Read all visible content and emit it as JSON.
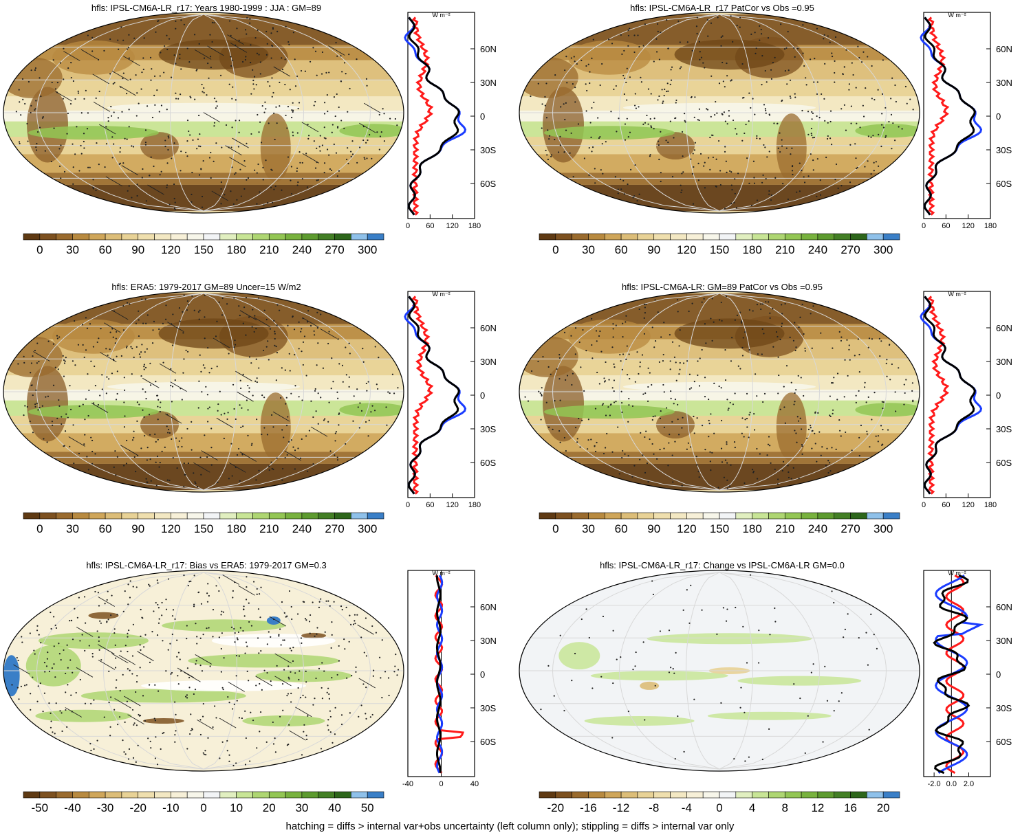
{
  "panels": [
    {
      "id": "p1",
      "title": "hfls: IPSL-CM6A-LR_r17: Years 1980-1999 : JJA : GM=89",
      "kind": "mean",
      "cbar": {
        "ticks": [
          "0",
          "30",
          "60",
          "90",
          "120",
          "150",
          "180",
          "210",
          "240",
          "270",
          "300"
        ],
        "colors": [
          "#5f3a13",
          "#7d5120",
          "#9a6b2e",
          "#b88a40",
          "#cfa65a",
          "#dcbd78",
          "#e8d296",
          "#efdfae",
          "#f3e8c3",
          "#f7f0d8",
          "#f7f6ea",
          "#f2f4f6",
          "#e1efc0",
          "#c8e596",
          "#aed672",
          "#93c654",
          "#78b23e",
          "#5d9b2f",
          "#437f25",
          "#2d661b",
          "#8fc1ea",
          "#3a7fc7"
        ]
      },
      "profile": {
        "xticks": [
          "0",
          "60",
          "120",
          "180"
        ],
        "xlim": [
          0,
          180
        ]
      }
    },
    {
      "id": "p2",
      "title": "hfls: IPSL-CM6A-LR_r17 PatCor vs Obs =0.95",
      "kind": "mean",
      "cbar": {
        "ticks": [
          "0",
          "30",
          "60",
          "90",
          "120",
          "150",
          "180",
          "210",
          "240",
          "270",
          "300"
        ]
      },
      "profile": {
        "xticks": [
          "0",
          "60",
          "120",
          "180"
        ],
        "xlim": [
          0,
          180
        ]
      }
    },
    {
      "id": "p3",
      "title": "hfls: ERA5: 1979-2017 GM=89 Uncer=15 W/m2",
      "kind": "mean",
      "cbar": {
        "ticks": [
          "0",
          "30",
          "60",
          "90",
          "120",
          "150",
          "180",
          "210",
          "240",
          "270",
          "300"
        ]
      },
      "profile": {
        "xticks": [
          "0",
          "60",
          "120",
          "180"
        ],
        "xlim": [
          0,
          180
        ]
      }
    },
    {
      "id": "p4",
      "title": "hfls: IPSL-CM6A-LR: GM=89 PatCor vs Obs =0.95",
      "kind": "mean",
      "cbar": {
        "ticks": [
          "0",
          "30",
          "60",
          "90",
          "120",
          "150",
          "180",
          "210",
          "240",
          "270",
          "300"
        ]
      },
      "profile": {
        "xticks": [
          "0",
          "60",
          "120",
          "180"
        ],
        "xlim": [
          0,
          180
        ]
      }
    },
    {
      "id": "p5",
      "title": "hfls: IPSL-CM6A-LR_r17: Bias vs ERA5: 1979-2017 GM=0.3",
      "kind": "bias",
      "cbar": {
        "ticks": [
          "-50",
          "-40",
          "-30",
          "-20",
          "-10",
          "0",
          "10",
          "20",
          "30",
          "40",
          "50"
        ]
      },
      "profile": {
        "xticks": [
          "-40",
          "0",
          "40"
        ],
        "xlim": [
          -40,
          40
        ]
      }
    },
    {
      "id": "p6",
      "title": "hfls: IPSL-CM6A-LR_r17: Change vs IPSL-CM6A-LR GM=0.0",
      "kind": "change",
      "cbar": {
        "ticks": [
          "-20",
          "-16",
          "-12",
          "-8",
          "-4",
          "0",
          "4",
          "8",
          "12",
          "16",
          "20"
        ]
      },
      "profile": {
        "xticks": [
          "-2.0",
          "0.0",
          "2.0"
        ],
        "xlim": [
          -3.2,
          4.5
        ]
      }
    }
  ],
  "lat_labels": [
    "60N",
    "30N",
    "0",
    "30S",
    "60S"
  ],
  "units": "W m⁻²",
  "series_colors": {
    "model": "#000000",
    "obs": "#1a3cff",
    "diff": "#ff1a1a"
  },
  "footnote": "hatching = diffs > internal var+obs uncertainty (left column only); stippling = diffs > internal var only"
}
